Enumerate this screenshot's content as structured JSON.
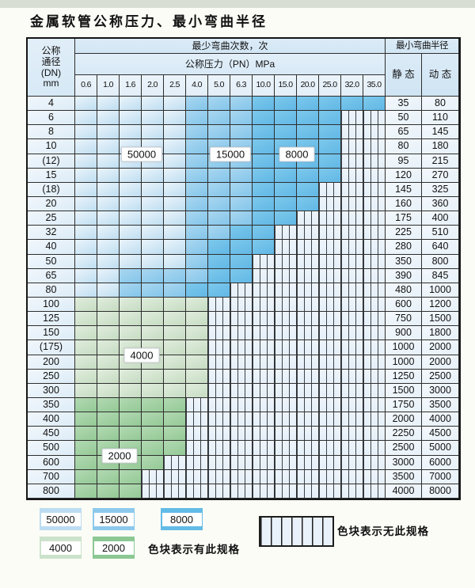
{
  "title": "金属软管公称压力、最小弯曲半径",
  "colors": {
    "cycles_50000": "#bcdcf1",
    "cycles_15000": "#8cc9ec",
    "cycles_8000": "#62bbe7",
    "cycles_4000": "#cbe2cb",
    "cycles_2000": "#8cc893",
    "no_spec_bg": "#eef4fb",
    "grid_line": "#2e2e2e"
  },
  "table": {
    "header": {
      "dn_lines": [
        "公称",
        "通径",
        "(DN)",
        "mm"
      ],
      "bend_cycles": "最少弯曲次数，次",
      "pressure": "公称压力（PN）MPa",
      "radius": "最小弯曲半径",
      "static": "静 态",
      "dynamic": "动 态",
      "pressures": [
        "0.6",
        "1.0",
        "1.6",
        "2.0",
        "2.5",
        "4.0",
        "5.0",
        "6.3",
        "10.0",
        "15.0",
        "20.0",
        "25.0",
        "32.0",
        "35.0"
      ]
    },
    "cell_legend_note": "cells: b1=50000次 b2=15000次 b3=8000次 g1=4000次 g2=2000次 x=无此规格",
    "rows": [
      {
        "dn": "4",
        "cells": [
          "b1",
          "b1",
          "b1",
          "b1",
          "b1",
          "b2",
          "b2",
          "b2",
          "b3",
          "b3",
          "b3",
          "b3",
          "b3",
          "b3"
        ],
        "static": "35",
        "dynamic": "80"
      },
      {
        "dn": "6",
        "cells": [
          "b1",
          "b1",
          "b1",
          "b1",
          "b1",
          "b2",
          "b2",
          "b2",
          "b3",
          "b3",
          "b3",
          "b3",
          "x",
          "x"
        ],
        "static": "50",
        "dynamic": "110"
      },
      {
        "dn": "8",
        "cells": [
          "b1",
          "b1",
          "b1",
          "b1",
          "b1",
          "b2",
          "b2",
          "b2",
          "b3",
          "b3",
          "b3",
          "b3",
          "x",
          "x"
        ],
        "static": "65",
        "dynamic": "145"
      },
      {
        "dn": "10",
        "cells": [
          "b1",
          "b1",
          "b1",
          "b1",
          "b1",
          "b2",
          "b2",
          "b2",
          "b3",
          "b3",
          "b3",
          "b3",
          "x",
          "x"
        ],
        "static": "80",
        "dynamic": "180"
      },
      {
        "dn": "(12)",
        "cells": [
          "b1",
          "b1",
          "b1",
          "b1",
          "b1",
          "b2",
          "b2",
          "b2",
          "b3",
          "b3",
          "b3",
          "b3",
          "x",
          "x"
        ],
        "static": "95",
        "dynamic": "215"
      },
      {
        "dn": "15",
        "cells": [
          "b1",
          "b1",
          "b1",
          "b1",
          "b1",
          "b2",
          "b2",
          "b2",
          "b3",
          "b3",
          "b3",
          "b3",
          "x",
          "x"
        ],
        "static": "120",
        "dynamic": "270"
      },
      {
        "dn": "(18)",
        "cells": [
          "b1",
          "b1",
          "b1",
          "b1",
          "b1",
          "b2",
          "b2",
          "b2",
          "b3",
          "b3",
          "b3",
          "x",
          "x",
          "x"
        ],
        "static": "145",
        "dynamic": "325"
      },
      {
        "dn": "20",
        "cells": [
          "b1",
          "b1",
          "b1",
          "b1",
          "b1",
          "b2",
          "b2",
          "b2",
          "b3",
          "b3",
          "b3",
          "x",
          "x",
          "x"
        ],
        "static": "160",
        "dynamic": "360"
      },
      {
        "dn": "25",
        "cells": [
          "b1",
          "b1",
          "b1",
          "b1",
          "b1",
          "b2",
          "b2",
          "b2",
          "b3",
          "b3",
          "x",
          "x",
          "x",
          "x"
        ],
        "static": "175",
        "dynamic": "400"
      },
      {
        "dn": "32",
        "cells": [
          "b1",
          "b1",
          "b1",
          "b1",
          "b1",
          "b2",
          "b2",
          "b3",
          "b3",
          "x",
          "x",
          "x",
          "x",
          "x"
        ],
        "static": "225",
        "dynamic": "510"
      },
      {
        "dn": "40",
        "cells": [
          "b1",
          "b1",
          "b1",
          "b1",
          "b1",
          "b2",
          "b3",
          "b3",
          "b3",
          "x",
          "x",
          "x",
          "x",
          "x"
        ],
        "static": "280",
        "dynamic": "640"
      },
      {
        "dn": "50",
        "cells": [
          "b1",
          "b1",
          "b1",
          "b1",
          "b1",
          "b2",
          "b3",
          "b3",
          "x",
          "x",
          "x",
          "x",
          "x",
          "x"
        ],
        "static": "350",
        "dynamic": "800"
      },
      {
        "dn": "65",
        "cells": [
          "b1",
          "b1",
          "b2",
          "b2",
          "b2",
          "b2",
          "b3",
          "b3",
          "x",
          "x",
          "x",
          "x",
          "x",
          "x"
        ],
        "static": "390",
        "dynamic": "845"
      },
      {
        "dn": "80",
        "cells": [
          "b1",
          "b1",
          "b2",
          "b2",
          "b2",
          "b3",
          "b3",
          "x",
          "x",
          "x",
          "x",
          "x",
          "x",
          "x"
        ],
        "static": "480",
        "dynamic": "1000"
      },
      {
        "dn": "100",
        "cells": [
          "g1",
          "g1",
          "g1",
          "g1",
          "g1",
          "g1",
          "x",
          "x",
          "x",
          "x",
          "x",
          "x",
          "x",
          "x"
        ],
        "static": "600",
        "dynamic": "1200"
      },
      {
        "dn": "125",
        "cells": [
          "g1",
          "g1",
          "g1",
          "g1",
          "g1",
          "g1",
          "x",
          "x",
          "x",
          "x",
          "x",
          "x",
          "x",
          "x"
        ],
        "static": "750",
        "dynamic": "1500"
      },
      {
        "dn": "150",
        "cells": [
          "g1",
          "g1",
          "g1",
          "g1",
          "g1",
          "g1",
          "x",
          "x",
          "x",
          "x",
          "x",
          "x",
          "x",
          "x"
        ],
        "static": "900",
        "dynamic": "1800"
      },
      {
        "dn": "(175)",
        "cells": [
          "g1",
          "g1",
          "g1",
          "g1",
          "g1",
          "g1",
          "x",
          "x",
          "x",
          "x",
          "x",
          "x",
          "x",
          "x"
        ],
        "static": "1000",
        "dynamic": "2000"
      },
      {
        "dn": "200",
        "cells": [
          "g1",
          "g1",
          "g1",
          "g1",
          "g1",
          "g1",
          "x",
          "x",
          "x",
          "x",
          "x",
          "x",
          "x",
          "x"
        ],
        "static": "1000",
        "dynamic": "2000"
      },
      {
        "dn": "250",
        "cells": [
          "g1",
          "g1",
          "g1",
          "g1",
          "g1",
          "g1",
          "x",
          "x",
          "x",
          "x",
          "x",
          "x",
          "x",
          "x"
        ],
        "static": "1250",
        "dynamic": "2500"
      },
      {
        "dn": "300",
        "cells": [
          "g1",
          "g1",
          "g1",
          "g1",
          "g1",
          "g1",
          "x",
          "x",
          "x",
          "x",
          "x",
          "x",
          "x",
          "x"
        ],
        "static": "1500",
        "dynamic": "3000"
      },
      {
        "dn": "350",
        "cells": [
          "g2",
          "g2",
          "g2",
          "g2",
          "g2",
          "x",
          "x",
          "x",
          "x",
          "x",
          "x",
          "x",
          "x",
          "x"
        ],
        "static": "1750",
        "dynamic": "3500"
      },
      {
        "dn": "400",
        "cells": [
          "g2",
          "g2",
          "g2",
          "g2",
          "g2",
          "x",
          "x",
          "x",
          "x",
          "x",
          "x",
          "x",
          "x",
          "x"
        ],
        "static": "2000",
        "dynamic": "4000"
      },
      {
        "dn": "450",
        "cells": [
          "g2",
          "g2",
          "g2",
          "g2",
          "g2",
          "x",
          "x",
          "x",
          "x",
          "x",
          "x",
          "x",
          "x",
          "x"
        ],
        "static": "2250",
        "dynamic": "4500"
      },
      {
        "dn": "500",
        "cells": [
          "g2",
          "g2",
          "g2",
          "g2",
          "g2",
          "x",
          "x",
          "x",
          "x",
          "x",
          "x",
          "x",
          "x",
          "x"
        ],
        "static": "2500",
        "dynamic": "5000"
      },
      {
        "dn": "600",
        "cells": [
          "g2",
          "g2",
          "g2",
          "g2",
          "x",
          "x",
          "x",
          "x",
          "x",
          "x",
          "x",
          "x",
          "x",
          "x"
        ],
        "static": "3000",
        "dynamic": "6000"
      },
      {
        "dn": "700",
        "cells": [
          "g2",
          "g2",
          "g2",
          "x",
          "x",
          "x",
          "x",
          "x",
          "x",
          "x",
          "x",
          "x",
          "x",
          "x"
        ],
        "static": "3500",
        "dynamic": "7000"
      },
      {
        "dn": "800",
        "cells": [
          "g2",
          "g2",
          "g2",
          "x",
          "x",
          "x",
          "x",
          "x",
          "x",
          "x",
          "x",
          "x",
          "x",
          "x"
        ],
        "static": "4000",
        "dynamic": "8000"
      }
    ],
    "overlays": [
      {
        "label": "50000",
        "row": 3,
        "rowspan": 2,
        "col": 2,
        "colspan": 2
      },
      {
        "label": "15000",
        "row": 3,
        "rowspan": 2,
        "col": 6,
        "colspan": 2
      },
      {
        "label": "8000",
        "row": 3,
        "rowspan": 2,
        "col": 9,
        "colspan": 2
      },
      {
        "label": "4000",
        "row": 17,
        "rowspan": 2,
        "col": 2,
        "colspan": 2
      },
      {
        "label": "2000",
        "row": 24,
        "rowspan": 2,
        "col": 1,
        "colspan": 2
      }
    ]
  },
  "legend": {
    "items": [
      {
        "label": "50000",
        "key": "b1"
      },
      {
        "label": "15000",
        "key": "b2"
      },
      {
        "label": "8000",
        "key": "b3"
      },
      {
        "label": "4000",
        "key": "g1"
      },
      {
        "label": "2000",
        "key": "g2"
      }
    ],
    "has_spec_text": "色块表示有此规格",
    "no_spec_text": "色块表示无此规格"
  }
}
